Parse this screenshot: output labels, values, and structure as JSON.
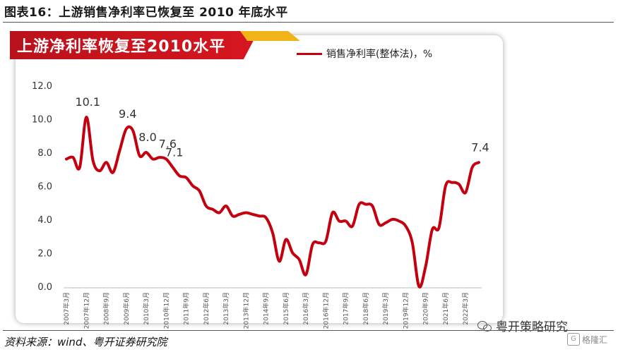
{
  "figure_title": "图表16：上游销售净利率已恢复至 2010 年底水平",
  "banner_title": "上游净利率恢复至2010水平",
  "source": "资料来源：wind、粤开证券研究院",
  "watermark": "粤开策略研究",
  "logo_text": "格隆汇",
  "logo_mark": "G",
  "colors": {
    "line": "#c4000f",
    "banner": "#d7161f",
    "banner_accent": "#f2b21a"
  },
  "chart_data": {
    "type": "line",
    "title": "上游净利率恢复至2010水平",
    "ylim": [
      0,
      12
    ],
    "yticks": [
      "0.0",
      "2.0",
      "4.0",
      "6.0",
      "8.0",
      "10.0",
      "12.0"
    ],
    "grid": false,
    "legend_position": "top-right",
    "xtick_labels": [
      "2007年3月",
      "2007年12月",
      "2008年9月",
      "2009年6月",
      "2010年3月",
      "2010年12月",
      "2011年9月",
      "2012年6月",
      "2013年3月",
      "2013年12月",
      "2014年9月",
      "2015年6月",
      "2016年3月",
      "2016年12月",
      "2017年9月",
      "2018年6月",
      "2019年3月",
      "2019年12月",
      "2020年9月",
      "2021年6月",
      "2022年3月"
    ],
    "series": [
      {
        "name": "销售净利率(整体法)，%",
        "values": [
          7.6,
          7.7,
          7.1,
          10.1,
          7.5,
          6.9,
          7.4,
          6.8,
          8.1,
          9.4,
          9.3,
          7.8,
          8.0,
          7.6,
          7.7,
          7.6,
          7.1,
          6.6,
          6.5,
          6.0,
          5.7,
          4.8,
          4.6,
          4.4,
          4.8,
          4.2,
          4.3,
          4.4,
          4.3,
          4.2,
          4.1,
          3.2,
          1.5,
          2.8,
          2.0,
          1.6,
          0.7,
          2.5,
          2.6,
          2.7,
          4.4,
          3.9,
          3.9,
          3.6,
          4.9,
          4.9,
          4.8,
          3.7,
          3.8,
          4.0,
          3.9,
          3.6,
          2.6,
          0.0,
          1.2,
          3.4,
          3.5,
          6.0,
          6.2,
          6.1,
          5.6,
          7.1,
          7.4
        ]
      }
    ],
    "annotations": [
      {
        "index": 3,
        "label": "10.1"
      },
      {
        "index": 9,
        "label": "9.4"
      },
      {
        "index": 12,
        "label": "8.0"
      },
      {
        "index": 15,
        "label": "7.6"
      },
      {
        "index": 16,
        "label": "7.1"
      },
      {
        "index": 62,
        "label": "7.4"
      }
    ]
  }
}
